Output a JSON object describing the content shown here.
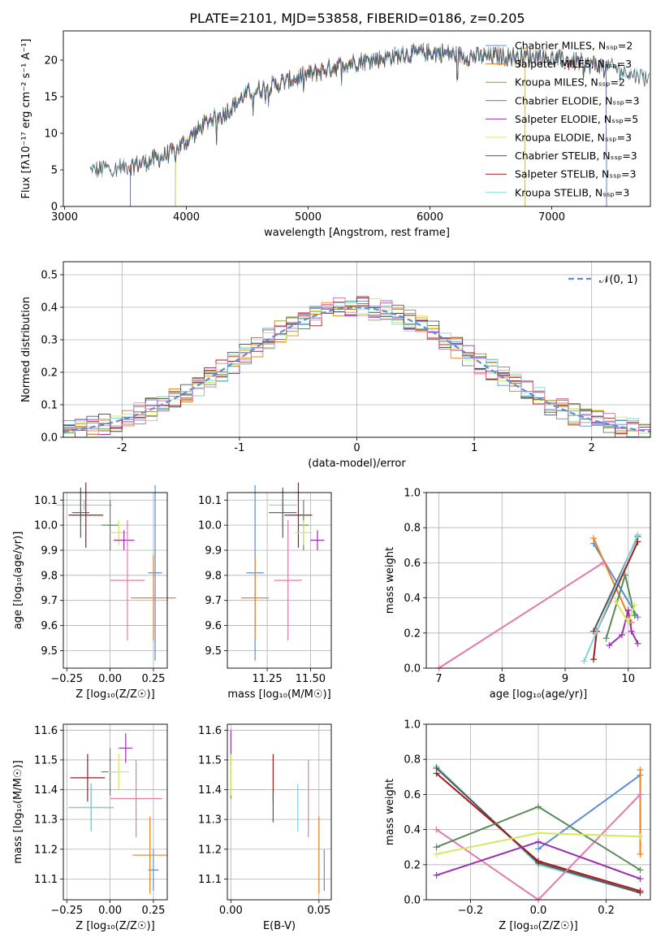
{
  "colors": {
    "chab_miles": "#5b8ed6",
    "salp_miles": "#f07f1c",
    "krou_miles": "#b8860b",
    "chab_elodie": "#5a8a5a",
    "salp_elodie": "#9a2fb0",
    "krou_elodie": "#d4e85a",
    "chab_stelib": "#555555",
    "salp_stelib": "#a01a1a",
    "krou_stelib": "#7fd3dc",
    "pink": "#e27aab",
    "normal": "#5b8ed6"
  },
  "chart_data": [
    {
      "id": "spectrum",
      "type": "line",
      "title": "PLATE=2101, MJD=53858, FIBERID=0186, z=0.205",
      "xlabel": "wavelength [Angstrom, rest frame]",
      "ylabel": "Flux [f$_\\lambda$10$^{-17}$ erg cm$^{-2}$ s$^{-1}$ A$^{-1}$]",
      "ylabel_display": "Flux [fλ10⁻¹⁷ erg cm⁻² s⁻¹ A⁻¹]",
      "xlim": [
        2990,
        7810
      ],
      "ylim": [
        0,
        24
      ],
      "xticks": [
        3000,
        4000,
        5000,
        6000,
        7000
      ],
      "yticks": [
        0,
        5,
        10,
        15,
        20
      ],
      "grid": false,
      "legend_position": "top-right",
      "legend": [
        "Chabrier MILES, N$_{SSP}$=2",
        "Salpeter MILES, N$_{SSP}$=3",
        "Kroupa MILES, N$_{SSP}$=2",
        "Chabrier ELODIE, N$_{SSP}$=3",
        "Salpeter ELODIE, N$_{SSP}$=5",
        "Kroupa ELODIE, N$_{SSP}$=3",
        "Chabrier STELIB, N$_{SSP}$=3",
        "Salpeter STELIB, N$_{SSP}$=3",
        "Kroupa STELIB, N$_{SSP}$=3"
      ],
      "legend_display": [
        "Chabrier MILES, Nₛₛₚ=2",
        "Salpeter MILES, Nₛₛₚ=3",
        "Kroupa MILES, Nₛₛₚ=2",
        "Chabrier ELODIE, Nₛₛₚ=3",
        "Salpeter ELODIE, Nₛₛₚ=5",
        "Kroupa ELODIE, Nₛₛₚ=3",
        "Chabrier STELIB, Nₛₛₚ=3",
        "Salpeter STELIB, Nₛₛₚ=3",
        "Kroupa STELIB, Nₛₛₚ=3"
      ],
      "continuum": {
        "x": [
          3210,
          3400,
          3500,
          3600,
          3700,
          3800,
          3900,
          4000,
          4100,
          4200,
          4300,
          4400,
          4500,
          4700,
          4900,
          5100,
          5300,
          5500,
          5700,
          5900,
          6100,
          6300,
          6500,
          6700,
          6900,
          7100,
          7300,
          7500,
          7700,
          7800
        ],
        "y": [
          5.0,
          5.2,
          5.5,
          5.8,
          6.2,
          6.8,
          7.5,
          9.0,
          10.5,
          12.0,
          12.5,
          14.0,
          15.5,
          16.5,
          17.5,
          18.5,
          19.5,
          20.0,
          20.5,
          21.0,
          21.0,
          20.5,
          20.5,
          20.5,
          20.5,
          20.0,
          19.5,
          19.0,
          18.0,
          17.5
        ]
      },
      "model_start_x": {
        "Chabrier MILES": 3540,
        "Salpeter MILES": 3540,
        "Kroupa MILES": 3540,
        "Chabrier ELODIE": 3910,
        "Salpeter ELODIE": 3910,
        "Kroupa ELODIE": 3910,
        "Chabrier STELIB": 3210,
        "Salpeter STELIB": 3540,
        "Kroupa STELIB": 3210
      },
      "model_end_x": {
        "Chabrier MILES": 7450,
        "Salpeter MILES": 7450,
        "Kroupa MILES": 7450,
        "Chabrier ELODIE": 6780,
        "Salpeter ELODIE": 6780,
        "Kroupa ELODIE": 6780,
        "Chabrier STELIB": 7800,
        "Salpeter STELIB": 7450,
        "Kroupa STELIB": 7800
      }
    },
    {
      "id": "residuals",
      "type": "line",
      "xlabel": "(data-model)/error",
      "ylabel": "Normed distribution",
      "xlim": [
        -2.5,
        2.5
      ],
      "ylim": [
        0,
        0.54
      ],
      "xticks": [
        -2,
        -1,
        0,
        1,
        2
      ],
      "yticks": [
        0.0,
        0.1,
        0.2,
        0.3,
        0.4,
        0.5
      ],
      "grid": true,
      "legend_position": "top-right",
      "legend": [
        "$\\mathcal{N}(0,1)$"
      ],
      "legend_display": [
        "𝒩(0, 1)"
      ],
      "series": [
        {
          "name": "$\\mathcal{N}(0,1)$",
          "function": "standard normal pdf",
          "style": "dashed"
        }
      ],
      "histograms": {
        "bin_width": 0.1,
        "range": [
          -2.5,
          2.5
        ],
        "count": 9,
        "description": "step histograms of the 9 model residuals, scattered around the normal curve"
      }
    },
    {
      "id": "age_vs_z",
      "type": "scatter",
      "xlabel": "Z [log$_{10}$(Z/Z$_\\odot$)]",
      "xlabel_display": "Z [log₁₀(Z/Z☉)]",
      "ylabel": "age  [log$_{10}$(age/yr)]",
      "ylabel_display": "age  [log₁₀(age/yr)]",
      "xlim": [
        -0.27,
        0.33
      ],
      "ylim": [
        9.43,
        10.13
      ],
      "xticks": [
        -0.25,
        0.0,
        0.25
      ],
      "xtick_labels": [
        "−0.25",
        "0.00",
        "0.25"
      ],
      "yticks": [
        9.5,
        9.6,
        9.7,
        9.8,
        9.9,
        10.0,
        10.1
      ],
      "grid": true,
      "points": [
        {
          "color": "krou_stelib",
          "x": -0.15,
          "xerr": 0.16,
          "y": 10.08,
          "yerr": 0.02
        },
        {
          "color": "chab_stelib",
          "x": -0.17,
          "xerr": 0.05,
          "y": 10.05,
          "yerr": 0.1
        },
        {
          "color": "salp_stelib",
          "x": -0.14,
          "xerr": 0.1,
          "y": 10.04,
          "yerr": 0.13
        },
        {
          "color": "chab_elodie",
          "x": 0.0,
          "xerr": 0.05,
          "y": 10.0,
          "yerr": 0.1
        },
        {
          "color": "krou_elodie",
          "x": 0.05,
          "xerr": 0.05,
          "y": 9.97,
          "yerr": 0.05
        },
        {
          "color": "salp_elodie",
          "x": 0.08,
          "xerr": 0.06,
          "y": 9.94,
          "yerr": 0.04
        },
        {
          "color": "pink",
          "x": 0.1,
          "xerr": 0.1,
          "y": 9.78,
          "yerr": 0.24
        },
        {
          "color": "chab_miles",
          "x": 0.26,
          "xerr": 0.04,
          "y": 9.81,
          "yerr": 0.35
        },
        {
          "color": "salp_miles",
          "x": 0.25,
          "xerr": 0.13,
          "y": 9.71,
          "yerr": 0.17
        }
      ]
    },
    {
      "id": "age_vs_mass",
      "type": "scatter",
      "xlabel": "mass [log$_{10}$(M/M$_\\odot$)]",
      "xlabel_display": "mass [log₁₀(M/M☉)]",
      "xlim": [
        11.02,
        11.62
      ],
      "ylim": [
        9.43,
        10.13
      ],
      "xticks": [
        11.25,
        11.5
      ],
      "xtick_labels": [
        "11.25",
        "11.50"
      ],
      "yticks": [
        9.5,
        9.6,
        9.7,
        9.8,
        9.9,
        10.0,
        10.1
      ],
      "grid": true,
      "points": [
        {
          "color": "krou_stelib",
          "x": 11.34,
          "xerr": 0.08,
          "y": 10.08,
          "yerr": 0.02
        },
        {
          "color": "chab_stelib",
          "x": 11.34,
          "xerr": 0.08,
          "y": 10.05,
          "yerr": 0.1
        },
        {
          "color": "salp_stelib",
          "x": 11.43,
          "xerr": 0.08,
          "y": 10.04,
          "yerr": 0.13
        },
        {
          "color": "chab_elodie",
          "x": 11.46,
          "xerr": 0.03,
          "y": 10.0,
          "yerr": 0.1
        },
        {
          "color": "krou_elodie",
          "x": 11.46,
          "xerr": 0.05,
          "y": 9.97,
          "yerr": 0.05
        },
        {
          "color": "salp_elodie",
          "x": 11.54,
          "xerr": 0.04,
          "y": 9.94,
          "yerr": 0.04
        },
        {
          "color": "pink",
          "x": 11.37,
          "xerr": 0.08,
          "y": 9.78,
          "yerr": 0.24
        },
        {
          "color": "chab_miles",
          "x": 11.18,
          "xerr": 0.05,
          "y": 9.81,
          "yerr": 0.35
        },
        {
          "color": "salp_miles",
          "x": 11.18,
          "xerr": 0.08,
          "y": 9.71,
          "yerr": 0.17
        }
      ]
    },
    {
      "id": "weight_vs_age",
      "type": "line",
      "xlabel": "age  [log$_{10}$(age/yr)]",
      "xlabel_display": "age  [log₁₀(age/yr)]",
      "ylabel": "mass weight",
      "xlim": [
        6.8,
        10.35
      ],
      "ylim": [
        0,
        1.0
      ],
      "xticks": [
        7,
        8,
        9,
        10
      ],
      "yticks": [
        0.0,
        0.2,
        0.4,
        0.6,
        0.8,
        1.0
      ],
      "grid": true,
      "series": [
        {
          "color": "chab_miles",
          "x": [
            9.45,
            10.15
          ],
          "y": [
            0.71,
            0.29
          ]
        },
        {
          "color": "salp_miles",
          "x": [
            9.45,
            10.05
          ],
          "y": [
            0.74,
            0.26
          ]
        },
        {
          "color": "pink",
          "x": [
            7.0,
            9.6
          ],
          "y": [
            0.0,
            0.6
          ]
        },
        {
          "color": "chab_elodie",
          "x": [
            9.65,
            9.95,
            10.1
          ],
          "y": [
            0.17,
            0.53,
            0.3
          ]
        },
        {
          "color": "salp_elodie",
          "x": [
            9.7,
            9.9,
            10.0,
            10.05,
            10.15
          ],
          "y": [
            0.13,
            0.19,
            0.33,
            0.21,
            0.14
          ]
        },
        {
          "color": "krou_elodie",
          "x": [
            9.8,
            10.0,
            10.1
          ],
          "y": [
            0.38,
            0.26,
            0.36
          ]
        },
        {
          "color": "chab_stelib",
          "x": [
            9.45,
            10.15
          ],
          "y": [
            0.21,
            0.75
          ]
        },
        {
          "color": "salp_stelib",
          "x": [
            9.45,
            9.5,
            10.15
          ],
          "y": [
            0.05,
            0.21,
            0.72
          ]
        },
        {
          "color": "krou_stelib",
          "x": [
            9.3,
            10.15
          ],
          "y": [
            0.04,
            0.76
          ]
        }
      ]
    },
    {
      "id": "mass_vs_z",
      "type": "scatter",
      "xlabel": "Z [log$_{10}$(Z/Z$_\\odot$)]",
      "xlabel_display": "Z [log₁₀(Z/Z☉)]",
      "ylabel": "mass [log$_{10}$(M/M$_\\odot$)]",
      "ylabel_display": "mass [log₁₀(M/M☉)]",
      "xlim": [
        -0.27,
        0.33
      ],
      "ylim": [
        11.03,
        11.62
      ],
      "xticks": [
        -0.25,
        0.0,
        0.25
      ],
      "xtick_labels": [
        "−0.25",
        "0.00",
        "0.25"
      ],
      "yticks": [
        11.1,
        11.2,
        11.3,
        11.4,
        11.5,
        11.6
      ],
      "grid": true,
      "points": [
        {
          "color": "salp_stelib",
          "x": -0.13,
          "xerr": 0.1,
          "y": 11.44,
          "yerr": 0.08
        },
        {
          "color": "chab_stelib",
          "x": -0.11,
          "xerr": 0.13,
          "y": 11.34,
          "yerr": 0.08
        },
        {
          "color": "krou_stelib",
          "x": -0.11,
          "xerr": 0.13,
          "y": 11.34,
          "yerr": 0.08
        },
        {
          "color": "chab_elodie",
          "x": 0.0,
          "xerr": 0.05,
          "y": 11.46,
          "yerr": 0.08
        },
        {
          "color": "krou_elodie",
          "x": 0.05,
          "xerr": 0.06,
          "y": 11.46,
          "yerr": 0.06
        },
        {
          "color": "salp_elodie",
          "x": 0.09,
          "xerr": 0.04,
          "y": 11.54,
          "yerr": 0.05
        },
        {
          "color": "pink",
          "x": 0.15,
          "xerr": 0.15,
          "y": 11.37,
          "yerr": 0.13
        },
        {
          "color": "chab_miles",
          "x": 0.25,
          "xerr": 0.03,
          "y": 11.13,
          "yerr": 0.07
        },
        {
          "color": "salp_miles",
          "x": 0.23,
          "xerr": 0.1,
          "y": 11.18,
          "yerr": 0.13
        }
      ]
    },
    {
      "id": "mass_vs_ebv",
      "type": "scatter",
      "xlabel": "E(B-V)",
      "xlim": [
        -0.002,
        0.057
      ],
      "ylim": [
        11.03,
        11.62
      ],
      "xticks": [
        0.0,
        0.05
      ],
      "xtick_labels": [
        "0.00",
        "0.05"
      ],
      "yticks": [
        11.1,
        11.2,
        11.3,
        11.4,
        11.5,
        11.6
      ],
      "grid": true,
      "points": [
        {
          "color": "salp_elodie",
          "x": 0.0,
          "y": 11.54,
          "yerr": 0.06
        },
        {
          "color": "chab_elodie",
          "x": 0.0,
          "y": 11.42,
          "yerr": 0.05
        },
        {
          "color": "krou_elodie",
          "x": 0.0,
          "y": 11.45,
          "yerr": 0.07
        },
        {
          "color": "salp_stelib",
          "x": 0.024,
          "y": 11.44,
          "yerr": 0.08
        },
        {
          "color": "chab_stelib",
          "x": 0.024,
          "y": 11.34,
          "yerr": 0.05
        },
        {
          "color": "krou_stelib",
          "x": 0.038,
          "y": 11.34,
          "yerr": 0.08
        },
        {
          "color": "pink",
          "x": 0.044,
          "y": 11.37,
          "yerr": 0.13
        },
        {
          "color": "salp_miles",
          "x": 0.05,
          "y": 11.18,
          "yerr": 0.13
        },
        {
          "color": "chab_miles",
          "x": 0.053,
          "y": 11.13,
          "yerr": 0.07
        }
      ]
    },
    {
      "id": "weight_vs_z",
      "type": "line",
      "xlabel": "Z [log$_{10}$(Z/Z$_\\odot$)]",
      "xlabel_display": "Z [log₁₀(Z/Z☉)]",
      "ylabel": "mass weight",
      "xlim": [
        -0.33,
        0.33
      ],
      "ylim": [
        0,
        1.0
      ],
      "xticks": [
        -0.2,
        0.0,
        0.2
      ],
      "xtick_labels": [
        "−0.2",
        "0.0",
        "0.2"
      ],
      "yticks": [
        0.0,
        0.2,
        0.4,
        0.6,
        0.8,
        1.0
      ],
      "grid": true,
      "series": [
        {
          "color": "krou_stelib",
          "x": [
            -0.3,
            0.0,
            0.3
          ],
          "y": [
            0.76,
            0.2,
            0.04
          ]
        },
        {
          "color": "chab_stelib",
          "x": [
            -0.3,
            0.0,
            0.3
          ],
          "y": [
            0.75,
            0.21,
            0.04
          ]
        },
        {
          "color": "salp_stelib",
          "x": [
            -0.3,
            0.0,
            0.3
          ],
          "y": [
            0.72,
            0.22,
            0.05
          ]
        },
        {
          "color": "chab_miles",
          "x": [
            0.0,
            0.3
          ],
          "y": [
            0.29,
            0.71
          ]
        },
        {
          "color": "salp_miles",
          "x": [
            0.3,
            0.3
          ],
          "y": [
            0.26,
            0.74
          ]
        },
        {
          "color": "pink",
          "x": [
            -0.3,
            0.0,
            0.3
          ],
          "y": [
            0.4,
            0.0,
            0.6
          ]
        },
        {
          "color": "chab_elodie",
          "x": [
            -0.3,
            0.0,
            0.3
          ],
          "y": [
            0.3,
            0.53,
            0.17
          ]
        },
        {
          "color": "krou_elodie",
          "x": [
            -0.3,
            0.0,
            0.3
          ],
          "y": [
            0.26,
            0.38,
            0.36
          ]
        },
        {
          "color": "salp_elodie",
          "x": [
            -0.3,
            0.0,
            0.3
          ],
          "y": [
            0.14,
            0.33,
            0.12
          ]
        }
      ]
    }
  ]
}
